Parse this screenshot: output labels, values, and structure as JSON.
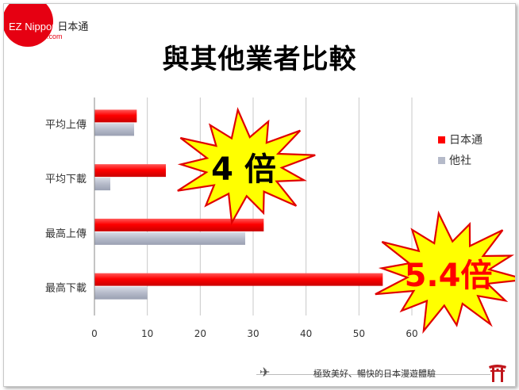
{
  "logo": {
    "brand": "EZ Nippon",
    "jp": "日本通",
    "domain": ".com",
    "color": "#e60012"
  },
  "title": "與其他業者比較",
  "footer": {
    "tagline": "極致美好、暢快的日本漫遊體驗",
    "plane_icon": "airplane-icon",
    "torii_icon": "torii-gate-icon"
  },
  "chart_data": {
    "type": "bar",
    "orientation": "horizontal",
    "categories": [
      "平均上傳",
      "平均下載",
      "最高上傳",
      "最高下載"
    ],
    "series": [
      {
        "name": "日本通",
        "values": [
          8,
          13.5,
          32,
          54.5
        ],
        "color": "#ff0000"
      },
      {
        "name": "他社",
        "values": [
          7.5,
          3,
          28.5,
          10
        ],
        "color": "#b5bac9"
      }
    ],
    "xlim": [
      0,
      60
    ],
    "xticks": [
      0,
      10,
      20,
      30,
      40,
      50,
      60
    ],
    "grid": true,
    "legend_position": "right"
  },
  "annotations": [
    {
      "label": "4 倍",
      "fill": "#ffff00",
      "text_color": "#000000"
    },
    {
      "label": "5.4倍",
      "fill": "#ffff00",
      "text_color": "#ff0000"
    }
  ]
}
